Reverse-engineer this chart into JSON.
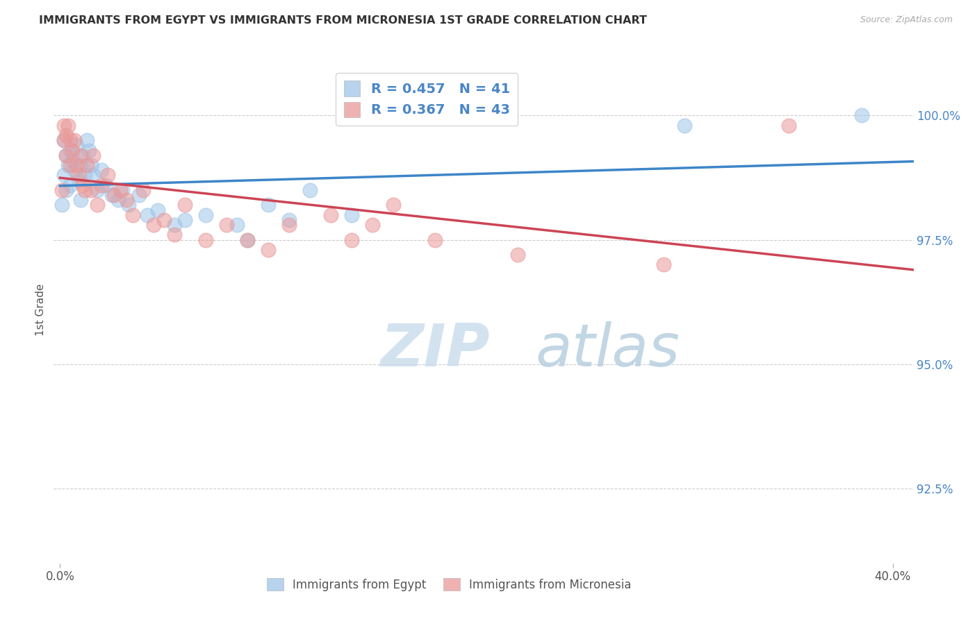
{
  "title": "IMMIGRANTS FROM EGYPT VS IMMIGRANTS FROM MICRONESIA 1ST GRADE CORRELATION CHART",
  "source": "Source: ZipAtlas.com",
  "ylabel": "1st Grade",
  "y_min": 91.0,
  "y_max": 101.2,
  "x_min": -0.3,
  "x_max": 41.0,
  "legend1_label": "R = 0.457   N = 41",
  "legend2_label": "R = 0.367   N = 43",
  "egypt_color": "#9fc5e8",
  "micronesia_color": "#ea9999",
  "egypt_line_color": "#3d85c8",
  "micronesia_line_color": "#cc4455",
  "egypt_scatter_x": [
    0.1,
    0.2,
    0.2,
    0.3,
    0.3,
    0.4,
    0.5,
    0.5,
    0.6,
    0.7,
    0.8,
    0.9,
    1.0,
    1.0,
    1.1,
    1.2,
    1.3,
    1.4,
    1.5,
    1.6,
    1.8,
    2.0,
    2.2,
    2.5,
    2.8,
    3.0,
    3.3,
    3.8,
    4.2,
    4.7,
    5.5,
    6.0,
    7.0,
    8.5,
    9.0,
    10.0,
    11.0,
    12.0,
    14.0,
    30.0,
    38.5
  ],
  "egypt_scatter_y": [
    98.2,
    99.5,
    98.8,
    99.2,
    98.5,
    99.0,
    99.3,
    98.6,
    99.1,
    98.9,
    99.4,
    98.7,
    99.0,
    98.3,
    99.2,
    98.8,
    99.5,
    99.3,
    99.0,
    98.8,
    98.5,
    98.9,
    98.6,
    98.4,
    98.3,
    98.5,
    98.2,
    98.4,
    98.0,
    98.1,
    97.8,
    97.9,
    98.0,
    97.8,
    97.5,
    98.2,
    97.9,
    98.5,
    98.0,
    99.8,
    100.0
  ],
  "micronesia_scatter_x": [
    0.1,
    0.2,
    0.2,
    0.3,
    0.3,
    0.4,
    0.5,
    0.5,
    0.6,
    0.7,
    0.8,
    0.9,
    1.0,
    1.1,
    1.2,
    1.3,
    1.5,
    1.6,
    1.8,
    2.0,
    2.3,
    2.6,
    2.9,
    3.2,
    3.5,
    4.0,
    4.5,
    5.0,
    5.5,
    6.0,
    7.0,
    8.0,
    9.0,
    10.0,
    11.0,
    13.0,
    14.0,
    15.0,
    16.0,
    18.0,
    22.0,
    29.0,
    35.0
  ],
  "micronesia_scatter_y": [
    98.5,
    99.8,
    99.5,
    99.6,
    99.2,
    99.8,
    99.5,
    99.0,
    99.3,
    99.5,
    99.0,
    98.8,
    99.2,
    98.6,
    98.5,
    99.0,
    98.5,
    99.2,
    98.2,
    98.6,
    98.8,
    98.4,
    98.5,
    98.3,
    98.0,
    98.5,
    97.8,
    97.9,
    97.6,
    98.2,
    97.5,
    97.8,
    97.5,
    97.3,
    97.8,
    98.0,
    97.5,
    97.8,
    98.2,
    97.5,
    97.2,
    97.0,
    99.8
  ],
  "watermark_zip": "ZIP",
  "watermark_atlas": "atlas",
  "background_color": "#ffffff",
  "grid_color": "#cccccc",
  "ytick_vals": [
    92.5,
    95.0,
    97.5,
    100.0
  ]
}
